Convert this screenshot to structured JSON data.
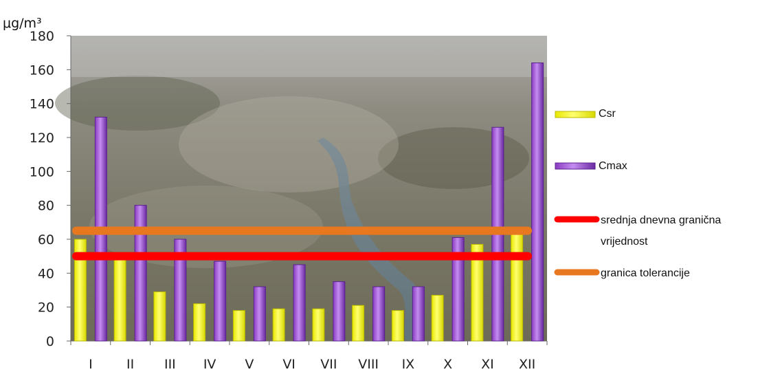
{
  "chart_data": {
    "type": "bar",
    "ylabel": "μg/m³",
    "ylim": [
      0,
      180
    ],
    "yticks": [
      0,
      20,
      40,
      60,
      80,
      100,
      120,
      140,
      160,
      180
    ],
    "categories": [
      "I",
      "II",
      "III",
      "IV",
      "V",
      "VI",
      "VII",
      "VIII",
      "IX",
      "X",
      "XI",
      "XII"
    ],
    "series": [
      {
        "name": "Csr",
        "color": "#ffff00",
        "values": [
          60,
          48,
          29,
          22,
          18,
          19,
          19,
          21,
          18,
          27,
          57,
          65
        ]
      },
      {
        "name": "Cmax",
        "color": "#a050d0",
        "values": [
          132,
          80,
          60,
          47,
          32,
          45,
          35,
          32,
          32,
          61,
          126,
          164
        ]
      }
    ],
    "reference_lines": [
      {
        "name": "srednja dnevna granična vrijednost",
        "value": 50,
        "color": "#ff0000"
      },
      {
        "name": "granica tolerancije",
        "value": 65,
        "color": "#e87820"
      }
    ],
    "legend": [
      {
        "label": "Csr",
        "color": "#ffff00"
      },
      {
        "label": "Cmax",
        "color": "#a050d0"
      },
      {
        "label_lines": [
          "srednja dnevna granična",
          "vrijednost"
        ],
        "color": "#ff0000"
      },
      {
        "label": "granica tolerancije",
        "color": "#e87820"
      }
    ],
    "background": "aerial-city-photo"
  }
}
